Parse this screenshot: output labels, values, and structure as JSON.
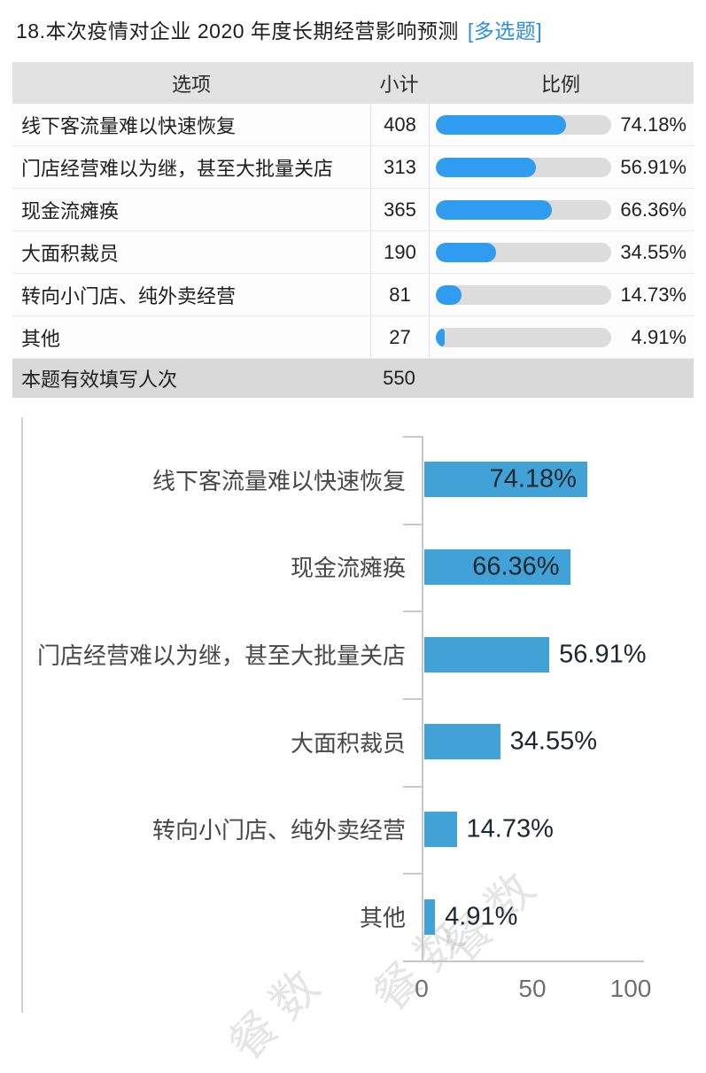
{
  "question": {
    "title": "18.本次疫情对企业 2020 年度长期经营影响预测",
    "tag": "[多选题]"
  },
  "table": {
    "headers": [
      "选项",
      "小计",
      "比例"
    ],
    "rows": [
      {
        "option": "线下客流量难以快速恢复",
        "count": "408",
        "percent": "74.18%",
        "value": 74.18
      },
      {
        "option": "门店经营难以为继，甚至大批量关店",
        "count": "313",
        "percent": "56.91%",
        "value": 56.91
      },
      {
        "option": "现金流瘫痪",
        "count": "365",
        "percent": "66.36%",
        "value": 66.36
      },
      {
        "option": "大面积裁员",
        "count": "190",
        "percent": "34.55%",
        "value": 34.55
      },
      {
        "option": "转向小门店、纯外卖经营",
        "count": "81",
        "percent": "14.73%",
        "value": 14.73
      },
      {
        "option": "其他",
        "count": "27",
        "percent": "4.91%",
        "value": 4.91
      }
    ],
    "footer": {
      "label": "本题有效填写人次",
      "count": "550"
    }
  },
  "chart_data": {
    "type": "bar",
    "orientation": "horizontal",
    "categories": [
      "线下客流量难以快速恢复",
      "现金流瘫痪",
      "门店经营难以为继，甚至大批量关店",
      "大面积裁员",
      "转向小门店、纯外卖经营",
      "其他"
    ],
    "values": [
      74.18,
      66.36,
      56.91,
      34.55,
      14.73,
      4.91
    ],
    "data_labels": [
      "74.18%",
      "66.36%",
      "56.91%",
      "34.55%",
      "14.73%",
      "4.91%"
    ],
    "labels_inside": [
      true,
      true,
      false,
      false,
      false,
      false
    ],
    "xlabel": "",
    "ylabel": "",
    "xticks": [
      "0",
      "50",
      "100"
    ],
    "xlim": [
      0,
      100
    ],
    "grid": false,
    "legend": false,
    "bar_color": "#41a2d7"
  },
  "watermark": {
    "text": "餐数"
  },
  "colors": {
    "tag_blue": "#2e8de8",
    "table_fill_blue": "#2f9cf0",
    "track_gray": "#dcdcdc",
    "header_bg": "#e2e2e2",
    "footer_bg": "#d9d9d9",
    "chart_bar_blue": "#41a2d7",
    "axis_gray": "#c6c6c6"
  }
}
